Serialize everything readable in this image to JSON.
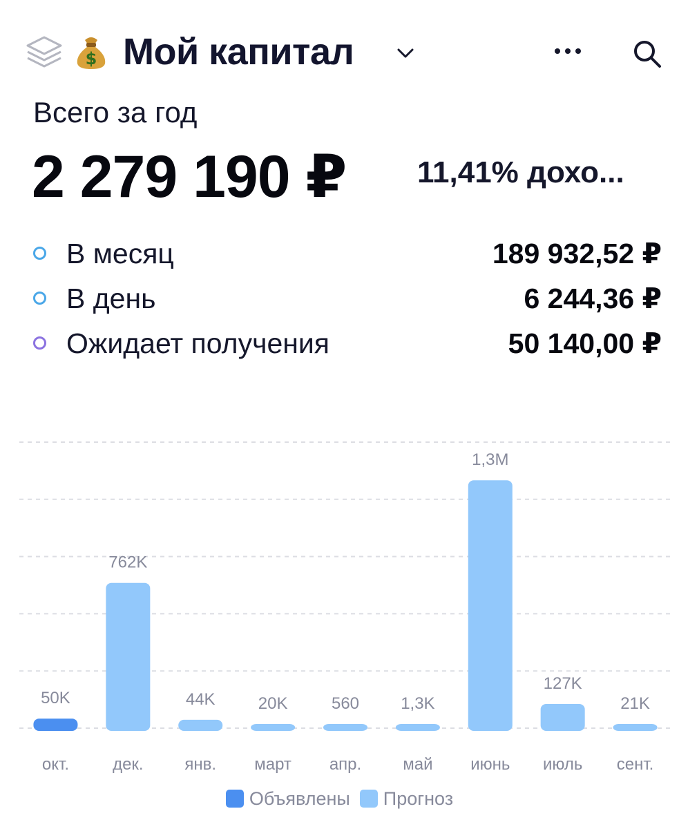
{
  "header": {
    "title": "Мой капитал",
    "icons": [
      "layers-icon",
      "money-bag-icon",
      "chevron-down-icon",
      "more-icon",
      "search-icon"
    ]
  },
  "summary": {
    "period_label": "Всего за год",
    "total": "2 279 190 ₽",
    "yield": "11,41% дохо..."
  },
  "stats": [
    {
      "label": "В месяц",
      "value": "189 932,52 ₽",
      "dot_color": "#4aa7e8"
    },
    {
      "label": "В день",
      "value": "6 244,36 ₽",
      "dot_color": "#4aa7e8"
    },
    {
      "label": "Ожидает получения",
      "value": "50 140,00 ₽",
      "dot_color": "#8b72e0"
    }
  ],
  "colors": {
    "declared": "#4b8ff0",
    "forecast": "#92c8fb",
    "grid": "#dcdde3",
    "axis_text": "#878a9b"
  },
  "chart_data": {
    "type": "bar",
    "categories": [
      "окт.",
      "дек.",
      "янв.",
      "март",
      "апр.",
      "май",
      "июнь",
      "июль",
      "сент."
    ],
    "series": [
      {
        "name": "Объявлены",
        "values": [
          50000,
          0,
          0,
          0,
          0,
          0,
          0,
          0,
          0
        ]
      },
      {
        "name": "Прогноз",
        "values": [
          0,
          762000,
          44000,
          20000,
          560,
          1300,
          1300000,
          127000,
          21000
        ]
      }
    ],
    "data_labels": [
      "50K",
      "762K",
      "44K",
      "20K",
      "560",
      "1,3K",
      "1,3M",
      "127K",
      "21K"
    ],
    "legend": [
      "Объявлены",
      "Прогноз"
    ],
    "legend_position": "bottom",
    "grid": true,
    "ylim": [
      0,
      1500000
    ]
  }
}
